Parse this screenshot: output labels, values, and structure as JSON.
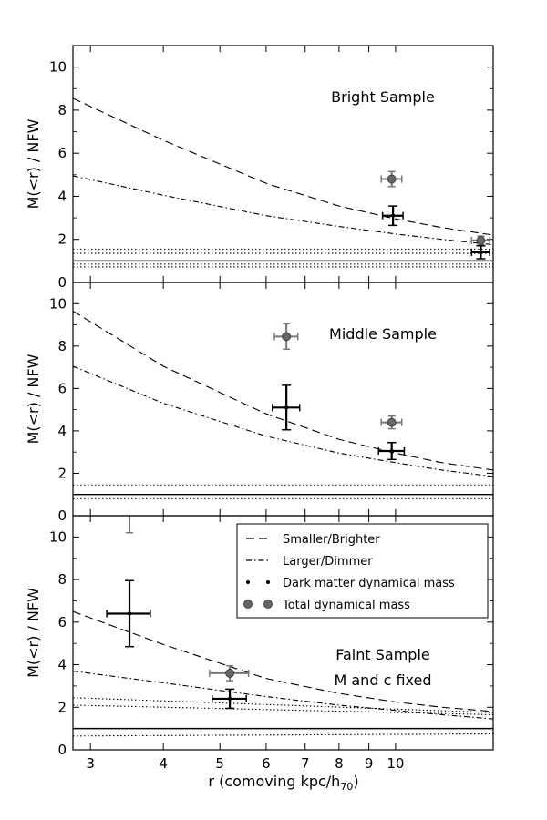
{
  "chart_data": [
    {
      "type": "line",
      "title": "Bright Sample",
      "annotation_lines": [],
      "xlabel": "",
      "ylabel": "M(<r) / NFW",
      "xscale": "log",
      "xlim": [
        2.8,
        14.7
      ],
      "ylim": [
        0,
        11
      ],
      "xticks": [
        3,
        4,
        5,
        6,
        7,
        8,
        9,
        10
      ],
      "xtick_labels": [
        "",
        "",
        "",
        "",
        "",
        "",
        "",
        ""
      ],
      "yticks": [
        0,
        2,
        4,
        6,
        8,
        10
      ],
      "ytick_labels": [
        "0",
        "2",
        "4",
        "6",
        "8",
        "10"
      ],
      "series": [
        {
          "name": "Smaller/Brighter",
          "style": "dashed",
          "x": [
            2.8,
            4,
            6,
            8,
            10,
            12,
            14.7
          ],
          "y": [
            8.55,
            6.6,
            4.6,
            3.55,
            2.95,
            2.55,
            2.2
          ]
        },
        {
          "name": "Larger/Dimmer",
          "style": "dashdot",
          "x": [
            2.8,
            4,
            6,
            8,
            10,
            12,
            14.7
          ],
          "y": [
            4.95,
            4.05,
            3.1,
            2.6,
            2.25,
            2.0,
            1.75
          ]
        },
        {
          "name": "",
          "style": "dotted",
          "x": [
            2.8,
            14.7
          ],
          "y": [
            1.55,
            1.55
          ]
        },
        {
          "name": "",
          "style": "dotted",
          "x": [
            2.8,
            14.7
          ],
          "y": [
            1.35,
            1.35
          ]
        },
        {
          "name": "",
          "style": "dotted",
          "x": [
            2.8,
            14.7
          ],
          "y": [
            0.85,
            0.85
          ]
        },
        {
          "name": "",
          "style": "dotted",
          "x": [
            2.8,
            14.7
          ],
          "y": [
            0.72,
            0.72
          ]
        },
        {
          "name": "",
          "style": "solid",
          "x": [
            2.8,
            14.7
          ],
          "y": [
            1.0,
            1.0
          ]
        }
      ],
      "points_dark_matter": [
        {
          "x": 9.9,
          "y": 3.1,
          "xerr": [
            0.4,
            0.4
          ],
          "yerr": [
            0.45,
            0.45
          ]
        },
        {
          "x": 14.0,
          "y": 1.4,
          "xerr": [
            0.5,
            0.5
          ],
          "yerr": [
            0.3,
            0.3
          ]
        }
      ],
      "points_total": [
        {
          "x": 9.85,
          "y": 4.8,
          "xerr": [
            0.4,
            0.4
          ],
          "yerr": [
            0.35,
            0.35
          ]
        },
        {
          "x": 14.0,
          "y": 1.95,
          "xerr": [
            0.5,
            0.5
          ],
          "yerr": [
            0.2,
            0.2
          ]
        }
      ]
    },
    {
      "type": "line",
      "title": "Middle Sample",
      "annotation_lines": [],
      "xlabel": "",
      "ylabel": "M(<r) / NFW",
      "xscale": "log",
      "xlim": [
        2.8,
        14.7
      ],
      "ylim": [
        0,
        11
      ],
      "xticks": [
        3,
        4,
        5,
        6,
        7,
        8,
        9,
        10
      ],
      "xtick_labels": [
        "",
        "",
        "",
        "",
        "",
        "",
        "",
        ""
      ],
      "yticks": [
        0,
        2,
        4,
        6,
        8,
        10
      ],
      "ytick_labels": [
        "0",
        "2",
        "4",
        "6",
        "8",
        "10"
      ],
      "series": [
        {
          "name": "Smaller/Brighter",
          "style": "dashed",
          "x": [
            2.8,
            4,
            6,
            8,
            10,
            12,
            14.7
          ],
          "y": [
            9.65,
            7.05,
            4.8,
            3.6,
            2.95,
            2.5,
            2.15
          ]
        },
        {
          "name": "Larger/Dimmer",
          "style": "dashdot",
          "x": [
            2.8,
            4,
            6,
            8,
            10,
            12,
            14.7
          ],
          "y": [
            7.05,
            5.3,
            3.75,
            2.95,
            2.5,
            2.15,
            1.85
          ]
        },
        {
          "name": "",
          "style": "dotted",
          "x": [
            2.8,
            14.7
          ],
          "y": [
            1.45,
            1.45
          ]
        },
        {
          "name": "",
          "style": "dotted",
          "x": [
            2.8,
            14.7
          ],
          "y": [
            0.8,
            0.8
          ]
        },
        {
          "name": "",
          "style": "solid",
          "x": [
            2.8,
            14.7
          ],
          "y": [
            1.0,
            1.0
          ]
        }
      ],
      "points_dark_matter": [
        {
          "x": 6.5,
          "y": 5.1,
          "xerr": [
            0.35,
            0.35
          ],
          "yerr": [
            1.05,
            1.05
          ]
        },
        {
          "x": 9.85,
          "y": 3.05,
          "xerr": [
            0.5,
            0.5
          ],
          "yerr": [
            0.4,
            0.4
          ]
        }
      ],
      "points_total": [
        {
          "x": 6.5,
          "y": 8.45,
          "xerr": [
            0.3,
            0.3
          ],
          "yerr": [
            0.6,
            0.6
          ]
        },
        {
          "x": 9.85,
          "y": 4.4,
          "xerr": [
            0.4,
            0.4
          ],
          "yerr": [
            0.3,
            0.3
          ]
        }
      ]
    },
    {
      "type": "line",
      "title": "Faint Sample",
      "annotation_lines": [
        "M and c fixed"
      ],
      "xlabel": "r (comoving kpc/h",
      "xlabel_sub": "70",
      "xlabel_end": ")",
      "ylabel": "M(<r) / NFW",
      "xscale": "log",
      "xlim": [
        2.8,
        14.7
      ],
      "ylim": [
        0,
        11
      ],
      "xticks": [
        3,
        4,
        5,
        6,
        7,
        8,
        9,
        10
      ],
      "xtick_labels": [
        "3",
        "4",
        "5",
        "6",
        "7",
        "8",
        "9",
        "10"
      ],
      "yticks": [
        0,
        2,
        4,
        6,
        8,
        10
      ],
      "ytick_labels": [
        "0",
        "2",
        "4",
        "6",
        "8",
        "10"
      ],
      "series": [
        {
          "name": "Smaller/Brighter",
          "style": "dashed",
          "x": [
            2.8,
            4,
            6,
            8,
            10,
            12,
            14.7
          ],
          "y": [
            6.5,
            4.95,
            3.35,
            2.65,
            2.25,
            2.0,
            1.8
          ]
        },
        {
          "name": "Larger/Dimmer",
          "style": "dashdot",
          "x": [
            2.8,
            4,
            6,
            8,
            10,
            12,
            14.7
          ],
          "y": [
            3.7,
            3.15,
            2.5,
            2.1,
            1.85,
            1.65,
            1.45
          ]
        },
        {
          "name": "",
          "style": "dotted",
          "x": [
            2.8,
            14.7
          ],
          "y": [
            2.45,
            1.75
          ]
        },
        {
          "name": "",
          "style": "dotted",
          "x": [
            2.8,
            14.7
          ],
          "y": [
            2.1,
            1.65
          ]
        },
        {
          "name": "",
          "style": "dotted",
          "x": [
            2.8,
            14.7
          ],
          "y": [
            0.65,
            0.75
          ]
        },
        {
          "name": "",
          "style": "solid",
          "x": [
            2.8,
            14.7
          ],
          "y": [
            1.0,
            1.0
          ]
        }
      ],
      "points_dark_matter": [
        {
          "x": 3.5,
          "y": 6.4,
          "xerr": [
            0.3,
            0.3
          ],
          "yerr": [
            1.55,
            1.55
          ]
        },
        {
          "x": 5.2,
          "y": 2.4,
          "xerr": [
            0.35,
            0.35
          ],
          "yerr": [
            0.45,
            0.45
          ]
        }
      ],
      "points_total": [
        {
          "x": 3.5,
          "y": 11.6,
          "xerr": [
            0.3,
            0.3
          ],
          "yerr": [
            1.4,
            1.4
          ]
        },
        {
          "x": 5.2,
          "y": 3.6,
          "xerr": [
            0.4,
            0.4
          ],
          "yerr": [
            0.35,
            0.35
          ]
        }
      ],
      "legend": {
        "placement": "top-right",
        "entries": [
          {
            "label": "Smaller/Brighter",
            "marker": "dashed"
          },
          {
            "label": "Larger/Dimmer",
            "marker": "dashdot"
          },
          {
            "label": "Dark matter dynamical mass",
            "marker": "dm"
          },
          {
            "label": "Total dynamical mass",
            "marker": "total"
          }
        ]
      }
    }
  ],
  "colors": {
    "line": "#000000",
    "total_marker": "#666666",
    "total_err": "#777777",
    "background": "#ffffff"
  }
}
